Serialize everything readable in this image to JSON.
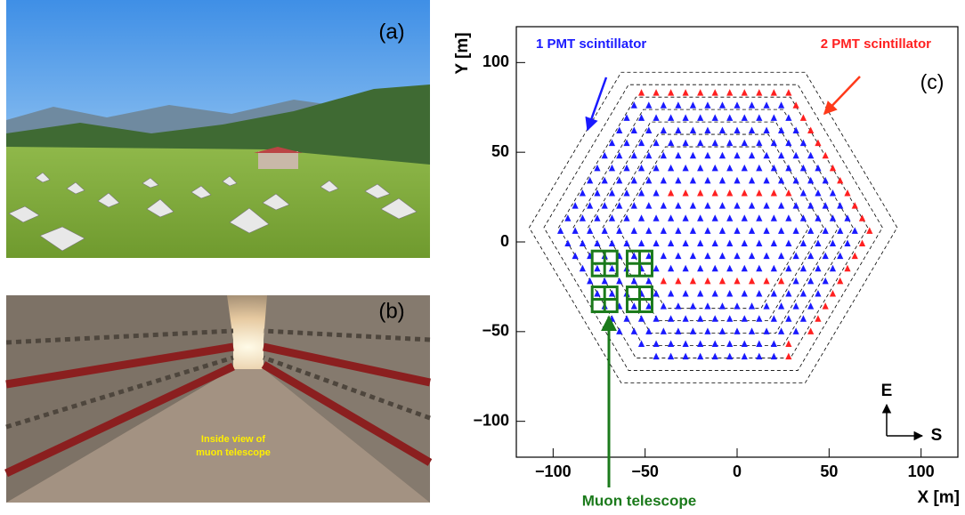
{
  "panels": {
    "a_label": "(a)",
    "b_label": "(b)",
    "b_caption": [
      "Inside view of",
      "muon telescope"
    ]
  },
  "chart_data": {
    "type": "scatter",
    "panel_label": "(c)",
    "x_label": "X [m]",
    "y_label": "Y [m]",
    "xlim": [
      -120,
      120
    ],
    "ylim": [
      -120,
      120
    ],
    "xticks": [
      {
        "value": -100,
        "label": "−100"
      },
      {
        "value": -50,
        "label": "−50"
      },
      0,
      50,
      100
    ],
    "yticks": [
      {
        "value": -100,
        "label": "−100"
      },
      {
        "value": -50,
        "label": "−50"
      },
      0,
      50,
      100
    ],
    "compass": [
      "E",
      "S"
    ],
    "series": [
      {
        "name": "1 PMT scintillator",
        "color": "#1a1aff",
        "marker": "triangle",
        "x": [
          -56,
          -48,
          -40,
          -32,
          -24,
          -16,
          -8,
          0,
          8,
          16,
          24,
          -60,
          -52,
          -44,
          -36,
          -28,
          -20,
          -12,
          -4,
          4,
          12,
          20,
          28,
          -64,
          -56,
          -48,
          -40,
          -32,
          -24,
          -16,
          -8,
          0,
          8,
          16,
          24,
          32,
          -68,
          -60,
          -52,
          -44,
          -36,
          -28,
          -20,
          -12,
          -4,
          4,
          12,
          20,
          28,
          36,
          -72,
          -64,
          -56,
          -48,
          -40,
          -32,
          -24,
          -16,
          -8,
          0,
          8,
          16,
          24,
          32,
          40,
          -76,
          -68,
          -60,
          -52,
          -44,
          -36,
          -28,
          -20,
          -12,
          -4,
          4,
          12,
          20,
          28,
          36,
          44,
          -80,
          -72,
          -64,
          -56,
          -48,
          -40,
          -32,
          -24,
          -16,
          -8,
          0,
          8,
          16,
          24,
          32,
          40,
          48,
          -84,
          -76,
          -68,
          -60,
          -52,
          -44,
          36,
          44,
          52,
          -88,
          -80,
          -72,
          -64,
          -56,
          -48,
          -40,
          -32,
          -24,
          -16,
          -8,
          0,
          8,
          16,
          24,
          32,
          40,
          48,
          56,
          -92,
          -84,
          -76,
          -68,
          -60,
          -52,
          -44,
          -36,
          -28,
          -20,
          -12,
          -4,
          4,
          12,
          20,
          28,
          36,
          44,
          52,
          60,
          -96,
          -88,
          -80,
          -72,
          -64,
          -56,
          -48,
          -40,
          -32,
          -24,
          -16,
          -8,
          0,
          8,
          16,
          24,
          32,
          40,
          48,
          56,
          64,
          -92,
          -84,
          -76,
          -68,
          -60,
          -52,
          -44,
          -36,
          -28,
          -20,
          -12,
          -4,
          4,
          12,
          20,
          28,
          36,
          44,
          52,
          60,
          -88,
          -80,
          -72,
          -64,
          -56,
          -48,
          -40,
          -32,
          -24,
          -16,
          -8,
          0,
          8,
          16,
          24,
          32,
          40,
          48,
          56,
          -84,
          -76,
          -68,
          -60,
          -52,
          -44,
          -36,
          -28,
          -20,
          -12,
          -4,
          4,
          12,
          20,
          28,
          36,
          44,
          52,
          -80,
          -72,
          -64,
          -56,
          -48,
          32,
          40,
          48,
          -76,
          -68,
          -60,
          -52,
          -44,
          -36,
          -28,
          -20,
          -12,
          -4,
          4,
          12,
          20,
          28,
          36,
          44,
          -72,
          -64,
          -56,
          -48,
          -40,
          -32,
          -24,
          -16,
          -8,
          0,
          8,
          16,
          24,
          32,
          40,
          -68,
          -60,
          -52,
          -44,
          -36,
          -28,
          -20,
          -12,
          -4,
          4,
          12,
          20,
          28,
          36,
          -64,
          -56,
          -48,
          -40,
          -32,
          -24,
          -16,
          -8,
          0,
          8,
          16,
          24,
          32,
          -52,
          -44,
          -36,
          -28,
          -20,
          -12,
          -4,
          4,
          12,
          20,
          -44,
          -36,
          -28,
          -20,
          -12,
          -4,
          4,
          12,
          20
        ],
        "y": [
          76,
          76,
          76,
          76,
          76,
          76,
          76,
          76,
          76,
          76,
          76,
          69,
          69,
          69,
          69,
          69,
          69,
          69,
          69,
          69,
          69,
          69,
          69,
          62,
          62,
          62,
          62,
          62,
          62,
          62,
          62,
          62,
          62,
          62,
          62,
          62,
          55,
          55,
          55,
          55,
          55,
          55,
          55,
          55,
          55,
          55,
          55,
          55,
          55,
          55,
          48,
          48,
          48,
          48,
          48,
          48,
          48,
          48,
          48,
          48,
          48,
          48,
          48,
          48,
          48,
          41,
          41,
          41,
          41,
          41,
          41,
          41,
          41,
          41,
          41,
          41,
          41,
          41,
          41,
          41,
          41,
          34,
          34,
          34,
          34,
          34,
          34,
          34,
          34,
          34,
          34,
          34,
          34,
          34,
          34,
          34,
          34,
          34,
          27,
          27,
          27,
          27,
          27,
          27,
          27,
          27,
          27,
          20,
          20,
          20,
          20,
          20,
          20,
          20,
          20,
          20,
          20,
          20,
          20,
          20,
          20,
          20,
          20,
          20,
          20,
          20,
          13,
          13,
          13,
          13,
          13,
          13,
          13,
          13,
          13,
          13,
          13,
          13,
          13,
          13,
          13,
          13,
          13,
          13,
          13,
          13,
          6,
          6,
          6,
          6,
          6,
          6,
          6,
          6,
          6,
          6,
          6,
          6,
          6,
          6,
          6,
          6,
          6,
          6,
          6,
          6,
          6,
          -1,
          -1,
          -1,
          -1,
          -1,
          -1,
          -1,
          -1,
          -1,
          -1,
          -1,
          -1,
          -1,
          -1,
          -1,
          -1,
          -1,
          -1,
          -1,
          -1,
          -8,
          -8,
          -8,
          -8,
          -8,
          -8,
          -8,
          -8,
          -8,
          -8,
          -8,
          -8,
          -8,
          -8,
          -8,
          -8,
          -8,
          -8,
          -8,
          -15,
          -15,
          -15,
          -15,
          -15,
          -15,
          -15,
          -15,
          -15,
          -15,
          -15,
          -15,
          -15,
          -15,
          -15,
          -15,
          -15,
          -15,
          -22,
          -22,
          -22,
          -22,
          -22,
          -22,
          -22,
          -22,
          -29,
          -29,
          -29,
          -29,
          -29,
          -29,
          -29,
          -29,
          -29,
          -29,
          -29,
          -29,
          -29,
          -29,
          -29,
          -29,
          -36,
          -36,
          -36,
          -36,
          -36,
          -36,
          -36,
          -36,
          -36,
          -36,
          -36,
          -36,
          -36,
          -36,
          -36,
          -43,
          -43,
          -43,
          -43,
          -43,
          -43,
          -43,
          -43,
          -43,
          -43,
          -43,
          -43,
          -43,
          -43,
          -50,
          -50,
          -50,
          -50,
          -50,
          -50,
          -50,
          -50,
          -50,
          -50,
          -50,
          -50,
          -50,
          -57,
          -57,
          -57,
          -57,
          -57,
          -57,
          -57,
          -57,
          -57,
          -57,
          -64,
          -64,
          -64,
          -64,
          -64,
          -64,
          -64,
          -64,
          -64
        ]
      },
      {
        "name": "2 PMT scintillator",
        "color": "#ff2020",
        "marker": "triangle",
        "x": [
          -52,
          -44,
          -36,
          -28,
          -20,
          -12,
          -4,
          4,
          12,
          20,
          28,
          32,
          36,
          40,
          44,
          48,
          52,
          56,
          60,
          -36,
          -28,
          -20,
          -12,
          -4,
          4,
          12,
          20,
          28,
          64,
          68,
          72,
          68,
          64,
          60,
          56,
          -40,
          -32,
          -24,
          -16,
          -8,
          0,
          8,
          16,
          24,
          52,
          48,
          44,
          40,
          28,
          28
        ],
        "y": [
          83,
          83,
          83,
          83,
          83,
          83,
          83,
          83,
          83,
          83,
          83,
          76,
          69,
          62,
          55,
          48,
          41,
          34,
          27,
          27,
          27,
          27,
          27,
          27,
          27,
          27,
          27,
          27,
          20,
          13,
          6,
          -1,
          -8,
          -15,
          -22,
          -22,
          -22,
          -22,
          -22,
          -22,
          -22,
          -22,
          -22,
          -22,
          -29,
          -36,
          -43,
          -50,
          -57,
          -64
        ]
      },
      {
        "name": "Muon telescope",
        "color": "#1b7a1b",
        "marker": "square",
        "x": [
          -72,
          -53,
          -72,
          -53
        ],
        "y": [
          -12,
          -12,
          -32,
          -32
        ]
      }
    ]
  }
}
